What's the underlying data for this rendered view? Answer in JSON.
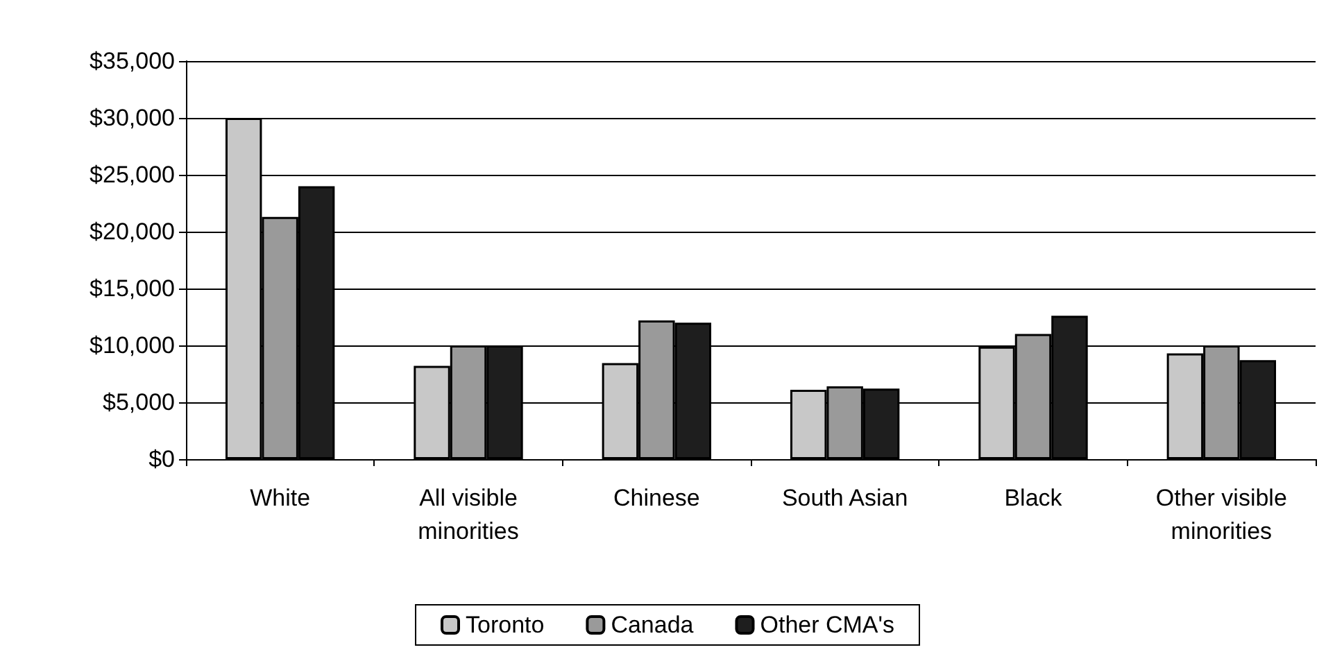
{
  "chart_data": {
    "type": "bar",
    "categories": [
      "White",
      "All visible\nminorities",
      "Chinese",
      "South Asian",
      "Black",
      "Other visible\nminorities"
    ],
    "series": [
      {
        "name": "Toronto",
        "color": "#c8c8c8",
        "values": [
          30000,
          8200,
          8450,
          6100,
          9900,
          9300
        ]
      },
      {
        "name": "Canada",
        "color": "#9a9a9a",
        "values": [
          21300,
          10000,
          12200,
          6400,
          11000,
          10000
        ]
      },
      {
        "name": "Other CMA's",
        "color": "#1e1e1e",
        "values": [
          24000,
          10000,
          12000,
          6200,
          12600,
          8700
        ]
      }
    ],
    "ylim": [
      0,
      35000
    ],
    "yticks": [
      {
        "value": 0,
        "label": "$0"
      },
      {
        "value": 5000,
        "label": "$5,000"
      },
      {
        "value": 10000,
        "label": "$10,000"
      },
      {
        "value": 15000,
        "label": "$15,000"
      },
      {
        "value": 20000,
        "label": "$20,000"
      },
      {
        "value": 25000,
        "label": "$25,000"
      },
      {
        "value": 30000,
        "label": "$30,000"
      },
      {
        "value": 35000,
        "label": "$35,000"
      }
    ],
    "grid": "y",
    "legend": "bottom"
  }
}
